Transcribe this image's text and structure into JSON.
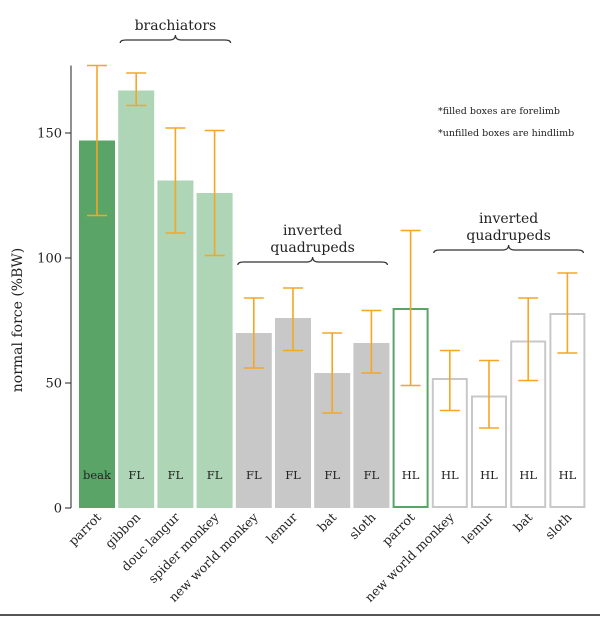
{
  "chart_data": {
    "type": "bar",
    "ylabel": "normal force (%BW)",
    "ylim": [
      0,
      185
    ],
    "yticks": [
      0,
      50,
      100,
      150
    ],
    "notes": [
      "*filled boxes are forelimb",
      "*unfilled boxes are hindlimb"
    ],
    "groups": [
      {
        "label": "brachiators",
        "from": 1,
        "to": 3
      },
      {
        "label": "inverted\nquadrupeds",
        "from": 4,
        "to": 7
      },
      {
        "label": "inverted\nquadrupeds",
        "from": 9,
        "to": 12
      }
    ],
    "bars": [
      {
        "category": "parrot",
        "tag": "beak",
        "value": 147,
        "err_low": 117,
        "err_high": 177,
        "fill": "#5aa468",
        "stroke": "#5aa468",
        "style": "filled"
      },
      {
        "category": "gibbon",
        "tag": "FL",
        "value": 167,
        "err_low": 161,
        "err_high": 174,
        "fill": "#aed5b5",
        "stroke": "#aed5b5",
        "style": "filled"
      },
      {
        "category": "douc langur",
        "tag": "FL",
        "value": 131,
        "err_low": 110,
        "err_high": 152,
        "fill": "#aed5b5",
        "stroke": "#aed5b5",
        "style": "filled"
      },
      {
        "category": "spider monkey",
        "tag": "FL",
        "value": 126,
        "err_low": 101,
        "err_high": 151,
        "fill": "#aed5b5",
        "stroke": "#aed5b5",
        "style": "filled"
      },
      {
        "category": "new world monkey",
        "tag": "FL",
        "value": 70,
        "err_low": 56,
        "err_high": 84,
        "fill": "#c8c8c8",
        "stroke": "#c8c8c8",
        "style": "filled"
      },
      {
        "category": "lemur",
        "tag": "FL",
        "value": 76,
        "err_low": 63,
        "err_high": 88,
        "fill": "#c8c8c8",
        "stroke": "#c8c8c8",
        "style": "filled"
      },
      {
        "category": "bat",
        "tag": "FL",
        "value": 54,
        "err_low": 38,
        "err_high": 70,
        "fill": "#c8c8c8",
        "stroke": "#c8c8c8",
        "style": "filled"
      },
      {
        "category": "sloth",
        "tag": "FL",
        "value": 66,
        "err_low": 54,
        "err_high": 79,
        "fill": "#c8c8c8",
        "stroke": "#c8c8c8",
        "style": "filled"
      },
      {
        "category": "parrot",
        "tag": "HL",
        "value": 80,
        "err_low": 49,
        "err_high": 111,
        "fill": "#ffffff",
        "stroke": "#5aa468",
        "style": "unfilled"
      },
      {
        "category": "new world monkey",
        "tag": "HL",
        "value": 52,
        "err_low": 39,
        "err_high": 63,
        "fill": "#ffffff",
        "stroke": "#c8c8c8",
        "style": "unfilled"
      },
      {
        "category": "lemur",
        "tag": "HL",
        "value": 45,
        "err_low": 32,
        "err_high": 59,
        "fill": "#ffffff",
        "stroke": "#c8c8c8",
        "style": "unfilled"
      },
      {
        "category": "bat",
        "tag": "HL",
        "value": 67,
        "err_low": 51,
        "err_high": 84,
        "fill": "#ffffff",
        "stroke": "#c8c8c8",
        "style": "unfilled"
      },
      {
        "category": "sloth",
        "tag": "HL",
        "value": 78,
        "err_low": 62,
        "err_high": 94,
        "fill": "#ffffff",
        "stroke": "#c8c8c8",
        "style": "unfilled"
      }
    ],
    "error_bar_color": "#f5a623",
    "grid": false,
    "legend": "none"
  }
}
